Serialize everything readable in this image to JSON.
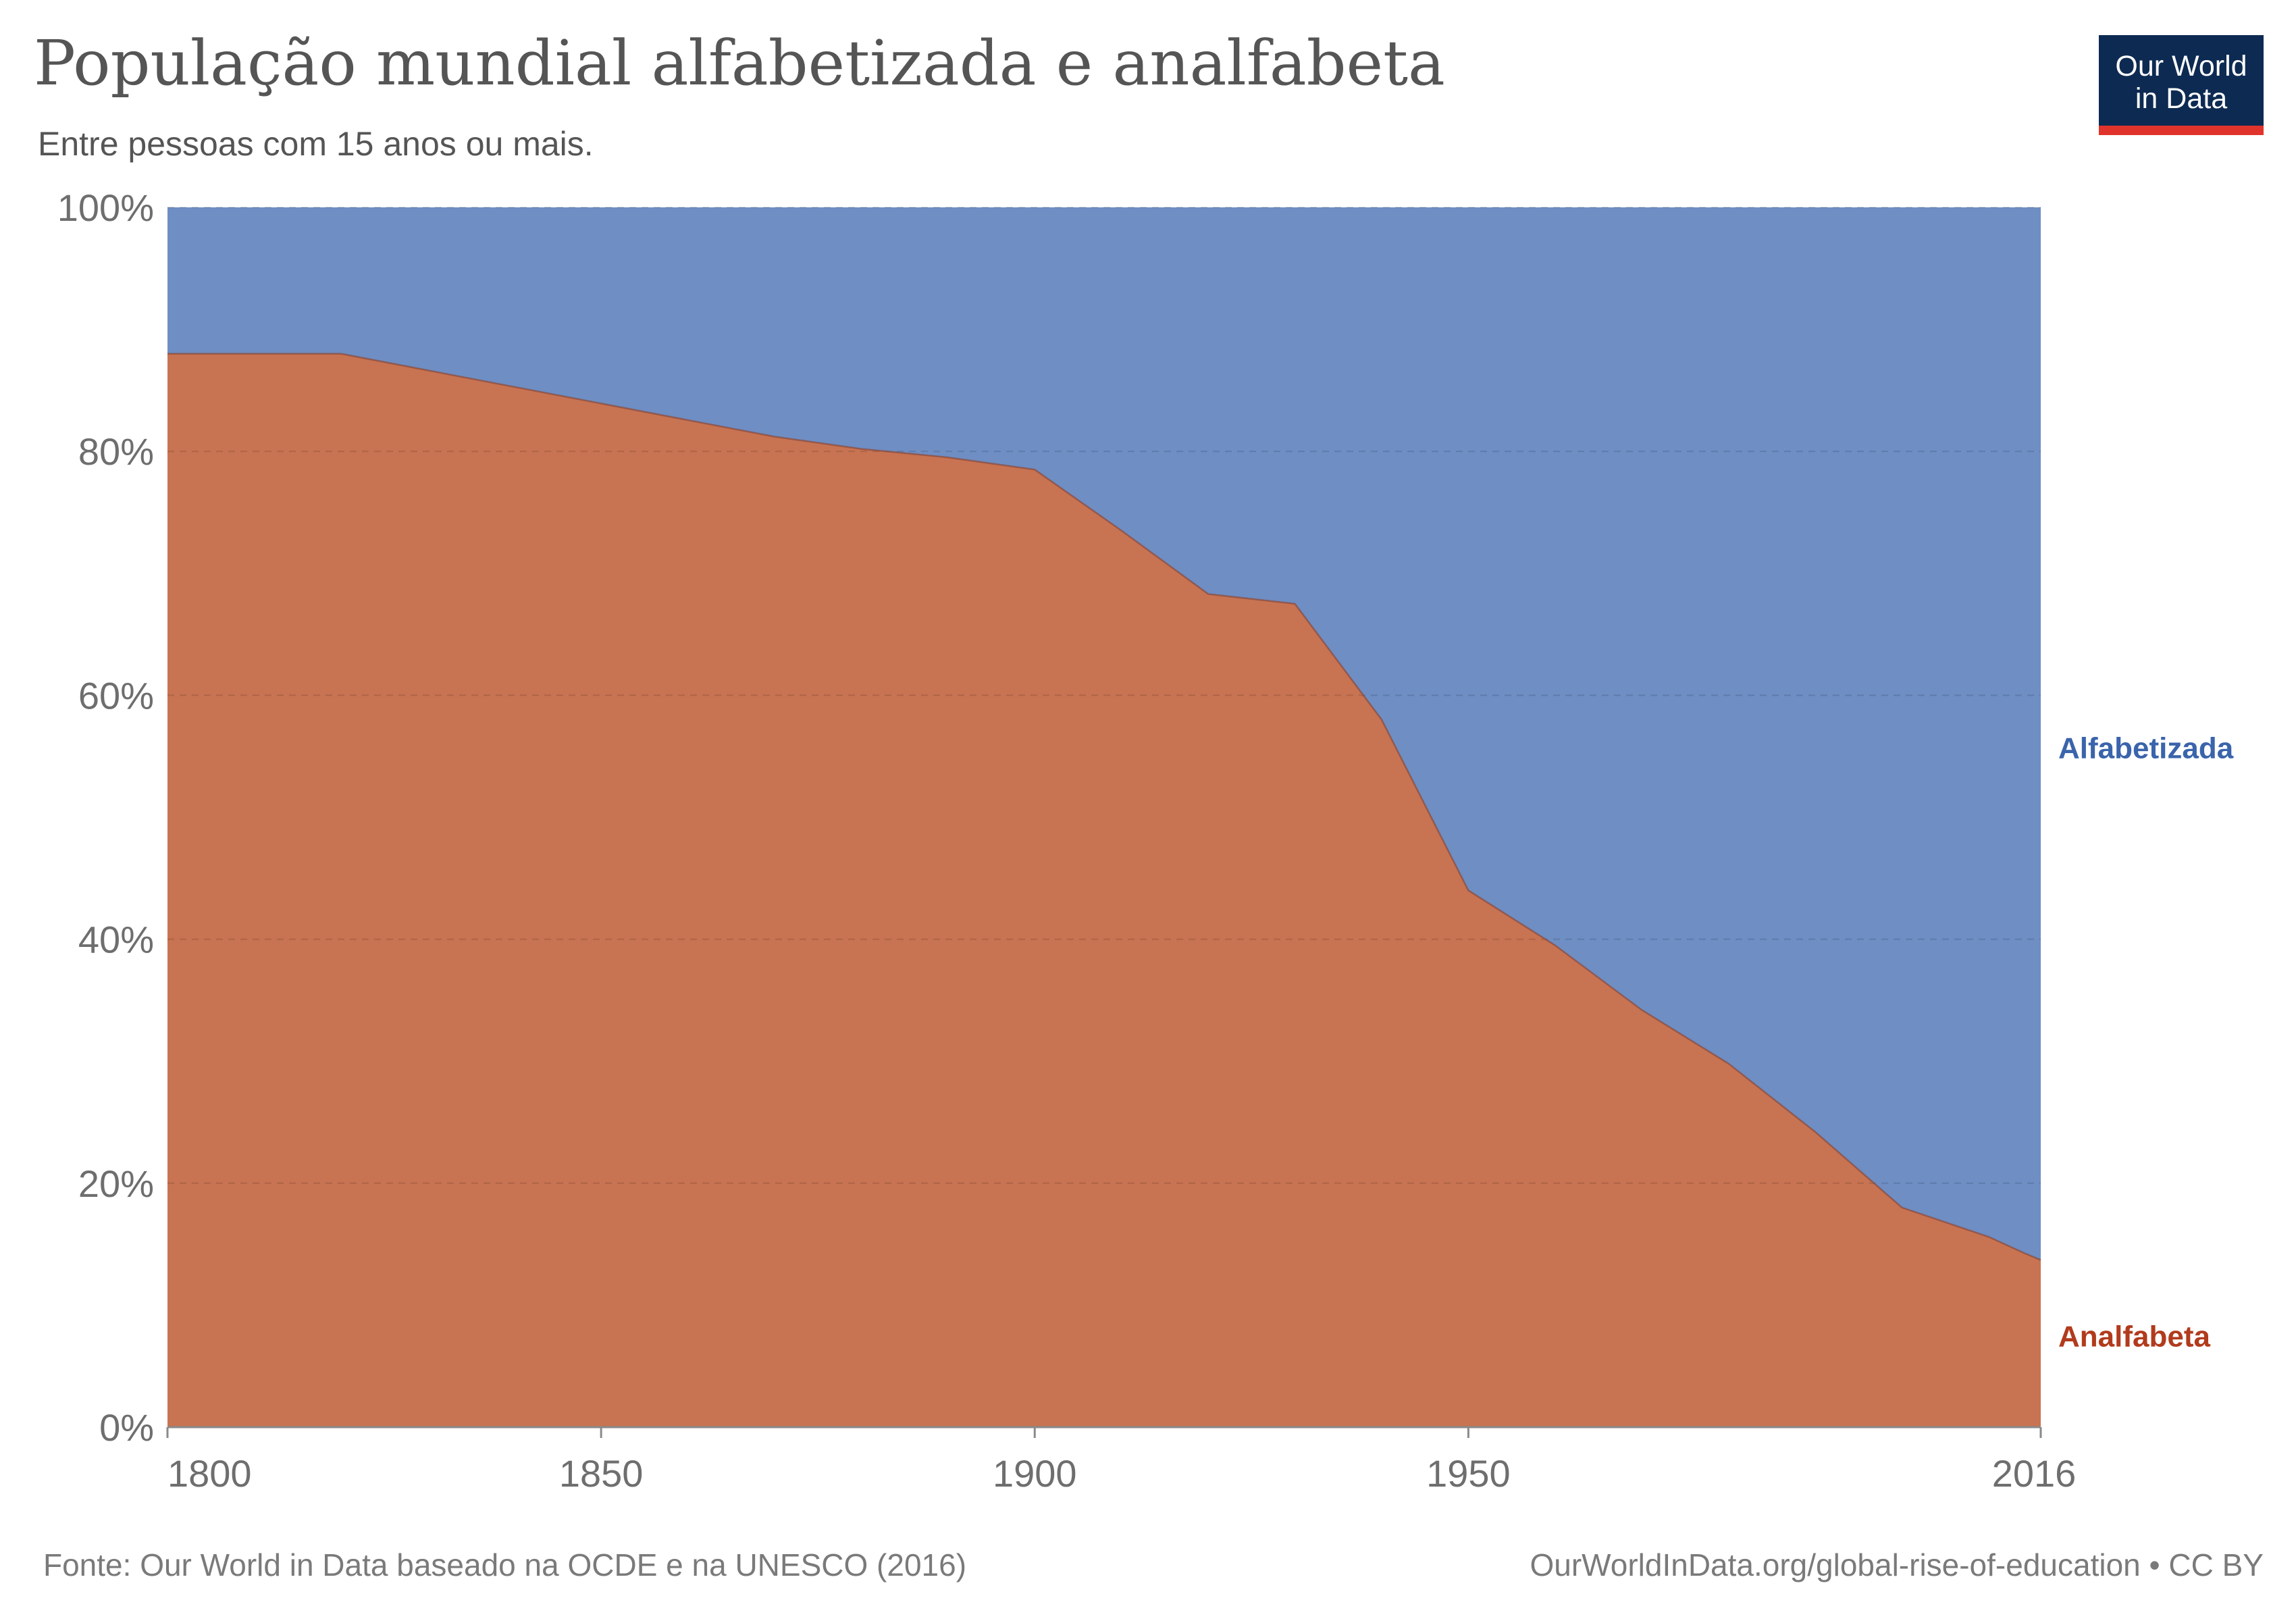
{
  "header": {
    "title": "População mundial alfabetizada e analfabeta",
    "subtitle": "Entre pessoas com 15 anos ou mais."
  },
  "logo": {
    "line1": "Our World",
    "line2": "in Data",
    "bg_color": "#0d2a52",
    "bar_color": "#e0332b"
  },
  "footer": {
    "source": "Fonte: Our World in Data baseado na OCDE e na UNESCO (2016)",
    "url": "OurWorldInData.org/global-rise-of-education • CC BY"
  },
  "chart_data": {
    "type": "area",
    "stacked": true,
    "normalized": true,
    "x": [
      1800,
      1820,
      1870,
      1880,
      1890,
      1900,
      1910,
      1920,
      1930,
      1940,
      1950,
      1960,
      1970,
      1980,
      1990,
      2000,
      2010,
      2014,
      2016
    ],
    "series": [
      {
        "name": "Analfabeta",
        "color": "#c87352",
        "label_color": "#b13b1c",
        "values": [
          88,
          88,
          81.2,
          80.2,
          79.5,
          78.5,
          73.5,
          68.3,
          67.5,
          58,
          44,
          39.5,
          34.2,
          29.8,
          24.2,
          18,
          15.6,
          14.3,
          13.7
        ]
      },
      {
        "name": "Alfabetizada",
        "color": "#6e8ec4",
        "label_color": "#3a64ab",
        "values": [
          12,
          12,
          18.8,
          19.8,
          20.5,
          21.5,
          26.5,
          31.7,
          32.5,
          42,
          56,
          60.5,
          65.8,
          70.2,
          75.8,
          82,
          84.4,
          85.7,
          86.3
        ]
      }
    ],
    "xticks": [
      1800,
      1850,
      1900,
      1950,
      2016
    ],
    "xtick_labels": [
      "1800",
      "1850",
      "1900",
      "1950",
      "2016"
    ],
    "yticks": [
      0,
      20,
      40,
      60,
      80,
      100
    ],
    "ytick_labels": [
      "0%",
      "20%",
      "40%",
      "60%",
      "80%",
      "100%"
    ],
    "xlim": [
      1800,
      2016
    ],
    "ylim": [
      0,
      100
    ],
    "grid": "horizontal dashed",
    "legend": "right inline labels"
  }
}
